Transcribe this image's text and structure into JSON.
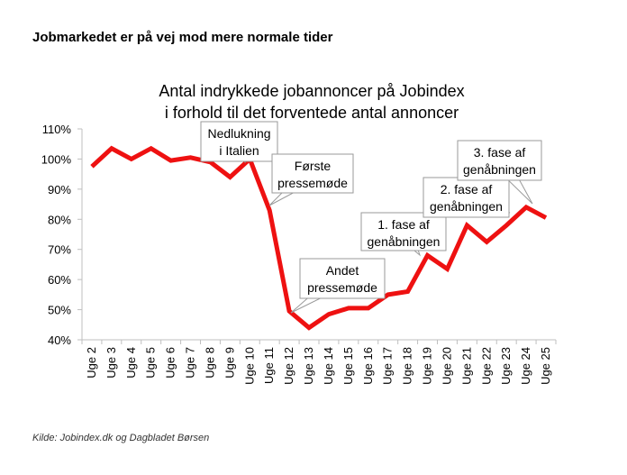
{
  "headline": "Jobmarkedet er på vej mod mere normale tider",
  "source": "Kilde: Jobindex.dk og Dagbladet Børsen",
  "colors": {
    "line": "#ee1111",
    "axis": "#bfbfbf",
    "callout_border": "#9a9a9a"
  },
  "chart_data": {
    "type": "line",
    "title_lines": [
      "Antal indrykkede jobannoncer på Jobindex",
      "i forhold til det forventede antal annoncer"
    ],
    "categories": [
      "Uge 2",
      "Uge 3",
      "Uge 4",
      "Uge 5",
      "Uge 6",
      "Uge 7",
      "Uge 8",
      "Uge 9",
      "Uge 10",
      "Uge 11",
      "Uge 12",
      "Uge 13",
      "Uge 14",
      "Uge 15",
      "Uge 16",
      "Uge 17",
      "Uge 18",
      "Uge 19",
      "Uge 20",
      "Uge 21",
      "Uge 22",
      "Uge 23",
      "Uge 24",
      "Uge 25"
    ],
    "series": [
      {
        "values": [
          97.5,
          103.5,
          100,
          103.5,
          99.5,
          100.5,
          99,
          94,
          100,
          83,
          49.5,
          44,
          48.5,
          50.5,
          50.5,
          55,
          56,
          68,
          63.5,
          78,
          72.5,
          78,
          84,
          80.5
        ]
      }
    ],
    "ylim": [
      40,
      110
    ],
    "yticks": [
      40,
      50,
      60,
      70,
      80,
      90,
      100,
      110
    ],
    "ytick_labels": [
      "40%",
      "50%",
      "60%",
      "70%",
      "80%",
      "90%",
      "100%",
      "110%"
    ],
    "grid": false,
    "annotations": [
      {
        "lines": [
          "Nedlukning",
          "i Italien"
        ],
        "category": "Uge 10"
      },
      {
        "lines": [
          "Første",
          "pressemøde"
        ],
        "category": "Uge 11"
      },
      {
        "lines": [
          "Andet",
          "pressemøde"
        ],
        "category": "Uge 12"
      },
      {
        "lines": [
          "1. fase af",
          "genåbningen"
        ],
        "category": "Uge 19"
      },
      {
        "lines": [
          "2. fase af",
          "genåbningen"
        ],
        "category": "Uge 23"
      },
      {
        "lines": [
          "3. fase af",
          "genåbningen"
        ],
        "category": "Uge 24"
      }
    ]
  }
}
